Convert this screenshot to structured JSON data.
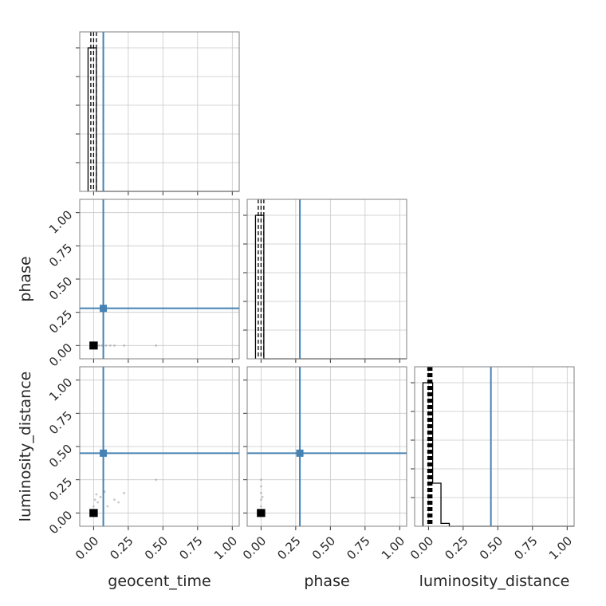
{
  "chart_data": {
    "type": "corner",
    "parameters": [
      "geocent_time",
      "phase",
      "luminosity_distance"
    ],
    "axis_labels": [
      "geocent_time",
      "phase",
      "luminosity_distance"
    ],
    "xlim": [
      -0.1,
      1.05
    ],
    "ylim": [
      -0.1,
      1.1
    ],
    "ticks": [
      0.0,
      0.25,
      0.5,
      0.75,
      1.0
    ],
    "tick_labels": [
      "0.00",
      "0.25",
      "0.50",
      "0.75",
      "1.00"
    ],
    "truths": {
      "geocent_time": 0.07,
      "phase": 0.28,
      "luminosity_distance": 0.45
    },
    "truth_color": "#4682b4",
    "hist_color": "#000000",
    "grid": true,
    "histograms": [
      {
        "parameter": "geocent_time",
        "bin_edges": [
          -0.04,
          0.02
        ],
        "counts": [
          1.0
        ],
        "quantiles": [
          -0.02,
          0.0,
          0.02
        ]
      },
      {
        "parameter": "phase",
        "bin_edges": [
          -0.04,
          0.02
        ],
        "counts": [
          1.0
        ],
        "quantiles": [
          -0.02,
          0.0,
          0.02
        ]
      },
      {
        "parameter": "luminosity_distance",
        "bin_edges": [
          -0.04,
          0.03,
          0.09,
          0.15
        ],
        "counts": [
          1.0,
          0.3,
          0.02
        ],
        "quantiles": [
          -0.005,
          0.0,
          0.005,
          0.01,
          0.015,
          0.02,
          0.025
        ]
      }
    ],
    "scatter": [
      {
        "x": "geocent_time",
        "y": "phase",
        "points": [
          [
            0.0,
            0.0
          ],
          [
            0.02,
            0.0
          ],
          [
            0.04,
            0.0
          ],
          [
            0.06,
            0.0
          ],
          [
            0.09,
            0.0
          ],
          [
            0.12,
            0.0
          ],
          [
            0.15,
            0.0
          ],
          [
            0.22,
            0.0
          ],
          [
            0.45,
            0.0
          ]
        ],
        "core": [
          -0.03,
          -0.03,
          0.03,
          0.03
        ]
      },
      {
        "x": "geocent_time",
        "y": "luminosity_distance",
        "points": [
          [
            0.0,
            0.05
          ],
          [
            0.01,
            0.1
          ],
          [
            0.02,
            0.14
          ],
          [
            0.03,
            0.08
          ],
          [
            0.05,
            0.12
          ],
          [
            0.08,
            0.16
          ],
          [
            0.1,
            0.05
          ],
          [
            0.15,
            0.1
          ],
          [
            0.18,
            0.08
          ],
          [
            0.22,
            0.15
          ],
          [
            0.45,
            0.25
          ]
        ],
        "core": [
          -0.03,
          -0.03,
          0.03,
          0.03
        ]
      },
      {
        "x": "phase",
        "y": "luminosity_distance",
        "points": [
          [
            0.0,
            0.05
          ],
          [
            0.0,
            0.1
          ],
          [
            0.0,
            0.15
          ],
          [
            0.0,
            0.2
          ],
          [
            0.0,
            0.25
          ],
          [
            0.01,
            0.12
          ]
        ],
        "core": [
          -0.03,
          -0.03,
          0.03,
          0.03
        ]
      }
    ]
  }
}
